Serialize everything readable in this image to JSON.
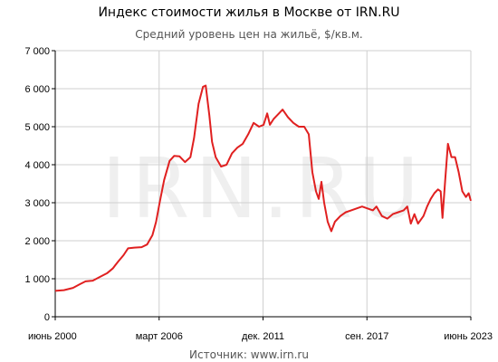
{
  "chart_data": {
    "type": "line",
    "title": "Индекс стоимости жилья в Москве от IRN.RU",
    "subtitle": "Средний уровень цен на жильё, $/кв.м.",
    "source": "Источник: www.irn.ru",
    "watermark": "IRN.RU",
    "ylim": [
      0,
      7000
    ],
    "yticks": [
      0,
      1000,
      2000,
      3000,
      4000,
      5000,
      6000,
      7000
    ],
    "ytick_labels": [
      "0",
      "1 000",
      "2 000",
      "3 000",
      "4 000",
      "5 000",
      "6 000",
      "7 000"
    ],
    "xlim": [
      2000.42,
      2023.42
    ],
    "xticks": [
      {
        "x": 2000.42,
        "label": "июнь 2000"
      },
      {
        "x": 2006.17,
        "label": "март 2006"
      },
      {
        "x": 2011.92,
        "label": "дек. 2011"
      },
      {
        "x": 2017.67,
        "label": "сен. 2017"
      },
      {
        "x": 2023.42,
        "label": "июнь 2023"
      }
    ],
    "grid": true,
    "colors": {
      "line": "#e02020",
      "grid": "#cfcfcf"
    },
    "series": [
      {
        "points": [
          [
            2000.42,
            680
          ],
          [
            2000.9,
            700
          ],
          [
            2001.4,
            760
          ],
          [
            2001.8,
            860
          ],
          [
            2002.1,
            930
          ],
          [
            2002.5,
            950
          ],
          [
            2002.9,
            1050
          ],
          [
            2003.3,
            1150
          ],
          [
            2003.6,
            1270
          ],
          [
            2003.9,
            1450
          ],
          [
            2004.2,
            1620
          ],
          [
            2004.45,
            1800
          ],
          [
            2004.8,
            1820
          ],
          [
            2005.2,
            1830
          ],
          [
            2005.5,
            1900
          ],
          [
            2005.8,
            2150
          ],
          [
            2006.0,
            2500
          ],
          [
            2006.2,
            3000
          ],
          [
            2006.45,
            3600
          ],
          [
            2006.75,
            4100
          ],
          [
            2007.0,
            4230
          ],
          [
            2007.3,
            4220
          ],
          [
            2007.6,
            4070
          ],
          [
            2007.9,
            4200
          ],
          [
            2008.1,
            4700
          ],
          [
            2008.35,
            5600
          ],
          [
            2008.6,
            6050
          ],
          [
            2008.75,
            6080
          ],
          [
            2008.95,
            5300
          ],
          [
            2009.1,
            4600
          ],
          [
            2009.3,
            4200
          ],
          [
            2009.6,
            3950
          ],
          [
            2009.9,
            4000
          ],
          [
            2010.2,
            4300
          ],
          [
            2010.5,
            4450
          ],
          [
            2010.8,
            4550
          ],
          [
            2011.1,
            4800
          ],
          [
            2011.4,
            5100
          ],
          [
            2011.7,
            5000
          ],
          [
            2011.95,
            5050
          ],
          [
            2012.15,
            5350
          ],
          [
            2012.3,
            5050
          ],
          [
            2012.5,
            5200
          ],
          [
            2012.8,
            5350
          ],
          [
            2013.0,
            5450
          ],
          [
            2013.3,
            5250
          ],
          [
            2013.6,
            5100
          ],
          [
            2013.9,
            5000
          ],
          [
            2014.2,
            5000
          ],
          [
            2014.45,
            4800
          ],
          [
            2014.65,
            3800
          ],
          [
            2014.85,
            3300
          ],
          [
            2015.0,
            3100
          ],
          [
            2015.15,
            3550
          ],
          [
            2015.3,
            3000
          ],
          [
            2015.5,
            2500
          ],
          [
            2015.7,
            2250
          ],
          [
            2015.9,
            2500
          ],
          [
            2016.2,
            2650
          ],
          [
            2016.5,
            2750
          ],
          [
            2016.8,
            2800
          ],
          [
            2017.1,
            2850
          ],
          [
            2017.4,
            2900
          ],
          [
            2017.7,
            2850
          ],
          [
            2018.0,
            2800
          ],
          [
            2018.2,
            2900
          ],
          [
            2018.5,
            2650
          ],
          [
            2018.8,
            2580
          ],
          [
            2019.1,
            2700
          ],
          [
            2019.4,
            2750
          ],
          [
            2019.7,
            2800
          ],
          [
            2019.9,
            2900
          ],
          [
            2020.1,
            2450
          ],
          [
            2020.3,
            2700
          ],
          [
            2020.5,
            2450
          ],
          [
            2020.8,
            2650
          ],
          [
            2021.0,
            2900
          ],
          [
            2021.2,
            3100
          ],
          [
            2021.4,
            3250
          ],
          [
            2021.6,
            3350
          ],
          [
            2021.75,
            3300
          ],
          [
            2021.85,
            2600
          ],
          [
            2022.0,
            3600
          ],
          [
            2022.15,
            4550
          ],
          [
            2022.35,
            4200
          ],
          [
            2022.55,
            4200
          ],
          [
            2022.75,
            3800
          ],
          [
            2022.95,
            3300
          ],
          [
            2023.15,
            3150
          ],
          [
            2023.3,
            3250
          ],
          [
            2023.42,
            3050
          ]
        ]
      }
    ]
  }
}
